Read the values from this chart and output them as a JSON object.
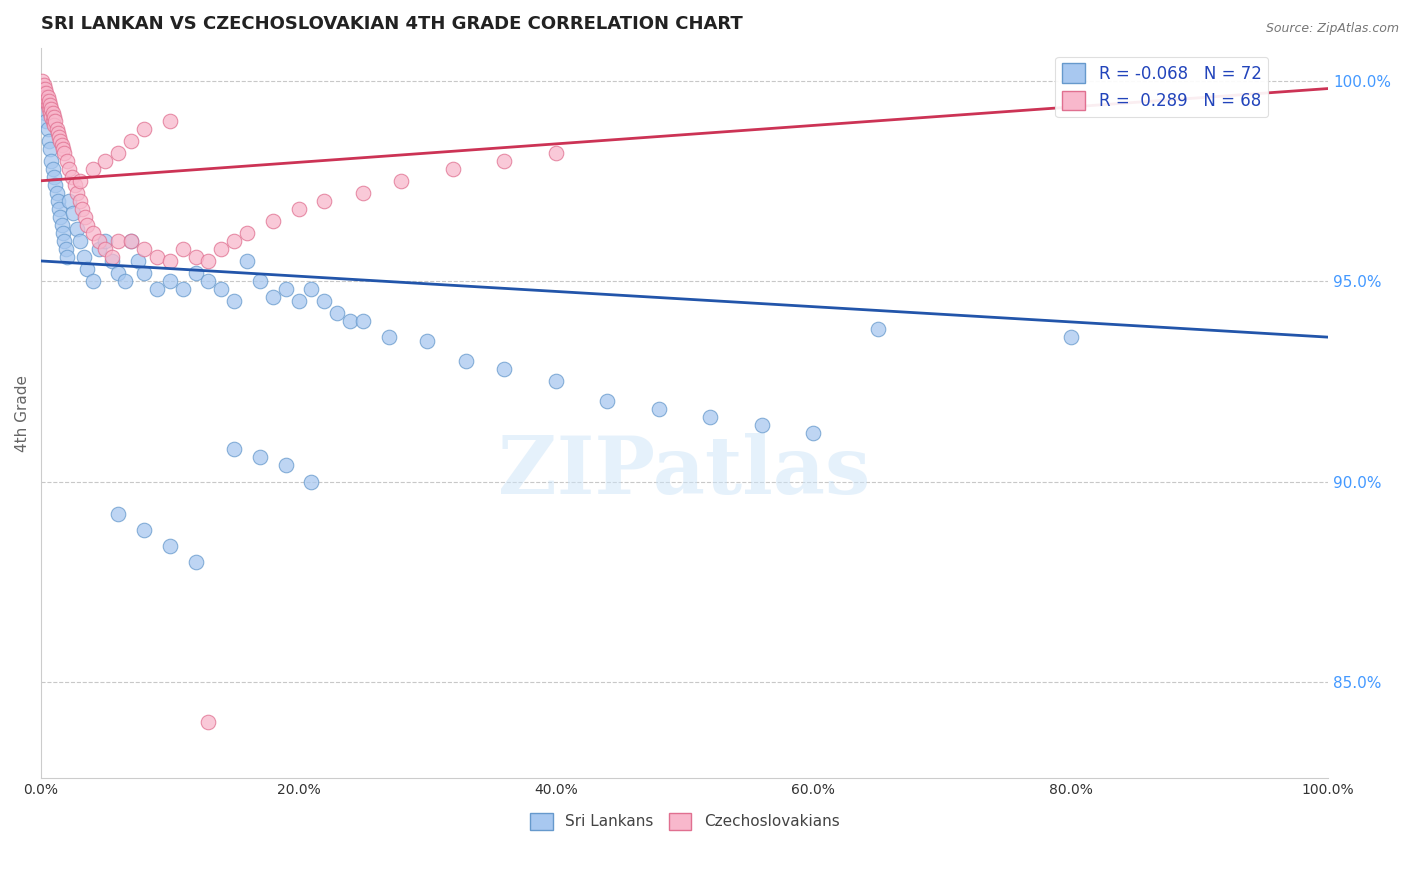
{
  "title": "SRI LANKAN VS CZECHOSLOVAKIAN 4TH GRADE CORRELATION CHART",
  "source": "Source: ZipAtlas.com",
  "ylabel": "4th Grade",
  "right_ytick_labels": [
    "85.0%",
    "90.0%",
    "95.0%",
    "100.0%"
  ],
  "right_yticks_vals": [
    0.85,
    0.9,
    0.95,
    1.0
  ],
  "watermark": "ZIPatlas",
  "legend_sri": "R = -0.068   N = 72",
  "legend_czech": "R =  0.289   N = 68",
  "legend_label_sri": "Sri Lankans",
  "legend_label_czech": "Czechoslovakians",
  "sri_color": "#a8c8f0",
  "sri_edge_color": "#6699cc",
  "czech_color": "#f8b8cc",
  "czech_edge_color": "#e07090",
  "trend_sri_color": "#2255aa",
  "trend_czech_color": "#cc3355",
  "background_color": "#ffffff",
  "grid_color": "#c8c8c8",
  "xmin": 0.0,
  "xmax": 1.0,
  "ymin": 0.826,
  "ymax": 1.008,
  "sri_x": [
    0.001,
    0.002,
    0.003,
    0.004,
    0.005,
    0.006,
    0.007,
    0.008,
    0.009,
    0.01,
    0.011,
    0.012,
    0.013,
    0.014,
    0.015,
    0.016,
    0.017,
    0.018,
    0.019,
    0.02,
    0.022,
    0.025,
    0.028,
    0.03,
    0.033,
    0.036,
    0.04,
    0.045,
    0.05,
    0.055,
    0.06,
    0.065,
    0.07,
    0.075,
    0.08,
    0.09,
    0.1,
    0.11,
    0.12,
    0.13,
    0.14,
    0.15,
    0.16,
    0.17,
    0.18,
    0.19,
    0.2,
    0.21,
    0.22,
    0.23,
    0.24,
    0.25,
    0.27,
    0.3,
    0.33,
    0.36,
    0.4,
    0.44,
    0.48,
    0.52,
    0.56,
    0.6,
    0.15,
    0.17,
    0.19,
    0.21,
    0.06,
    0.08,
    0.1,
    0.12,
    0.65,
    0.8
  ],
  "sri_y": [
    0.998,
    0.995,
    0.992,
    0.99,
    0.988,
    0.985,
    0.983,
    0.98,
    0.978,
    0.976,
    0.974,
    0.972,
    0.97,
    0.968,
    0.966,
    0.964,
    0.962,
    0.96,
    0.958,
    0.956,
    0.97,
    0.967,
    0.963,
    0.96,
    0.956,
    0.953,
    0.95,
    0.958,
    0.96,
    0.955,
    0.952,
    0.95,
    0.96,
    0.955,
    0.952,
    0.948,
    0.95,
    0.948,
    0.952,
    0.95,
    0.948,
    0.945,
    0.955,
    0.95,
    0.946,
    0.948,
    0.945,
    0.948,
    0.945,
    0.942,
    0.94,
    0.94,
    0.936,
    0.935,
    0.93,
    0.928,
    0.925,
    0.92,
    0.918,
    0.916,
    0.914,
    0.912,
    0.908,
    0.906,
    0.904,
    0.9,
    0.892,
    0.888,
    0.884,
    0.88,
    0.938,
    0.936
  ],
  "czech_x": [
    0.001,
    0.001,
    0.002,
    0.002,
    0.003,
    0.003,
    0.004,
    0.004,
    0.005,
    0.005,
    0.006,
    0.006,
    0.007,
    0.007,
    0.008,
    0.008,
    0.009,
    0.009,
    0.01,
    0.01,
    0.011,
    0.012,
    0.013,
    0.014,
    0.015,
    0.016,
    0.017,
    0.018,
    0.02,
    0.022,
    0.024,
    0.026,
    0.028,
    0.03,
    0.032,
    0.034,
    0.036,
    0.04,
    0.045,
    0.05,
    0.055,
    0.06,
    0.07,
    0.08,
    0.09,
    0.1,
    0.11,
    0.12,
    0.13,
    0.14,
    0.15,
    0.16,
    0.18,
    0.2,
    0.22,
    0.25,
    0.28,
    0.32,
    0.36,
    0.4,
    0.03,
    0.04,
    0.05,
    0.06,
    0.07,
    0.08,
    0.1,
    0.13
  ],
  "czech_y": [
    1.0,
    0.998,
    0.999,
    0.997,
    0.998,
    0.996,
    0.997,
    0.995,
    0.996,
    0.994,
    0.995,
    0.993,
    0.994,
    0.992,
    0.993,
    0.991,
    0.992,
    0.99,
    0.991,
    0.989,
    0.99,
    0.988,
    0.987,
    0.986,
    0.985,
    0.984,
    0.983,
    0.982,
    0.98,
    0.978,
    0.976,
    0.974,
    0.972,
    0.97,
    0.968,
    0.966,
    0.964,
    0.962,
    0.96,
    0.958,
    0.956,
    0.96,
    0.96,
    0.958,
    0.956,
    0.955,
    0.958,
    0.956,
    0.955,
    0.958,
    0.96,
    0.962,
    0.965,
    0.968,
    0.97,
    0.972,
    0.975,
    0.978,
    0.98,
    0.982,
    0.975,
    0.978,
    0.98,
    0.982,
    0.985,
    0.988,
    0.99,
    0.84
  ]
}
